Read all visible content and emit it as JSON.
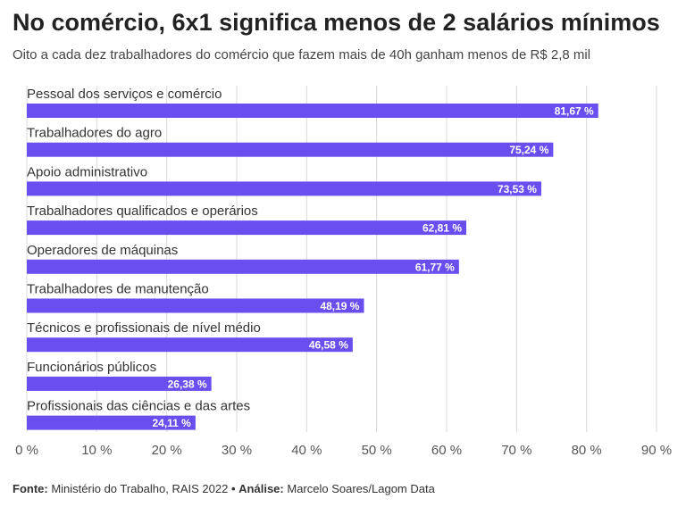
{
  "title": "No comércio, 6x1 significa menos de 2 salários mínimos",
  "subtitle": "Oito a cada dez trabalhadores do comércio que fazem mais de 40h ganham menos de R$ 2,8 mil",
  "footer": {
    "source_label": "Fonte:",
    "source_text": "Ministério do Trabalho, RAIS 2022",
    "separator": "•",
    "analysis_label": "Análise:",
    "analysis_text": "Marcelo Soares/Lagom Data"
  },
  "colors": {
    "bar": "#6a4ef0",
    "grid": "#d9d9d9"
  },
  "chart_data": {
    "type": "bar",
    "orientation": "horizontal",
    "categories": [
      "Pessoal dos serviços e comércio",
      "Trabalhadores do agro",
      "Apoio administrativo",
      "Trabalhadores qualificados e operários",
      "Operadores de máquinas",
      "Trabalhadores de manutenção",
      "Técnicos e profissionais de nível médio",
      "Funcionários públicos",
      "Profissionais das ciências e das artes"
    ],
    "values": [
      81.67,
      75.24,
      73.53,
      62.81,
      61.77,
      48.19,
      46.58,
      26.38,
      24.11
    ],
    "value_labels": [
      "81,67 %",
      "75,24 %",
      "73,53 %",
      "62,81 %",
      "61,77 %",
      "48,19 %",
      "46,58 %",
      "26,38 %",
      "24,11 %"
    ],
    "xlim": [
      0,
      90
    ],
    "xticks": [
      0,
      10,
      20,
      30,
      40,
      50,
      60,
      70,
      80,
      90
    ],
    "xtick_labels": [
      "0 %",
      "10 %",
      "20 %",
      "30 %",
      "40 %",
      "50 %",
      "60 %",
      "70 %",
      "80 %",
      "90 %"
    ],
    "grid": true
  }
}
